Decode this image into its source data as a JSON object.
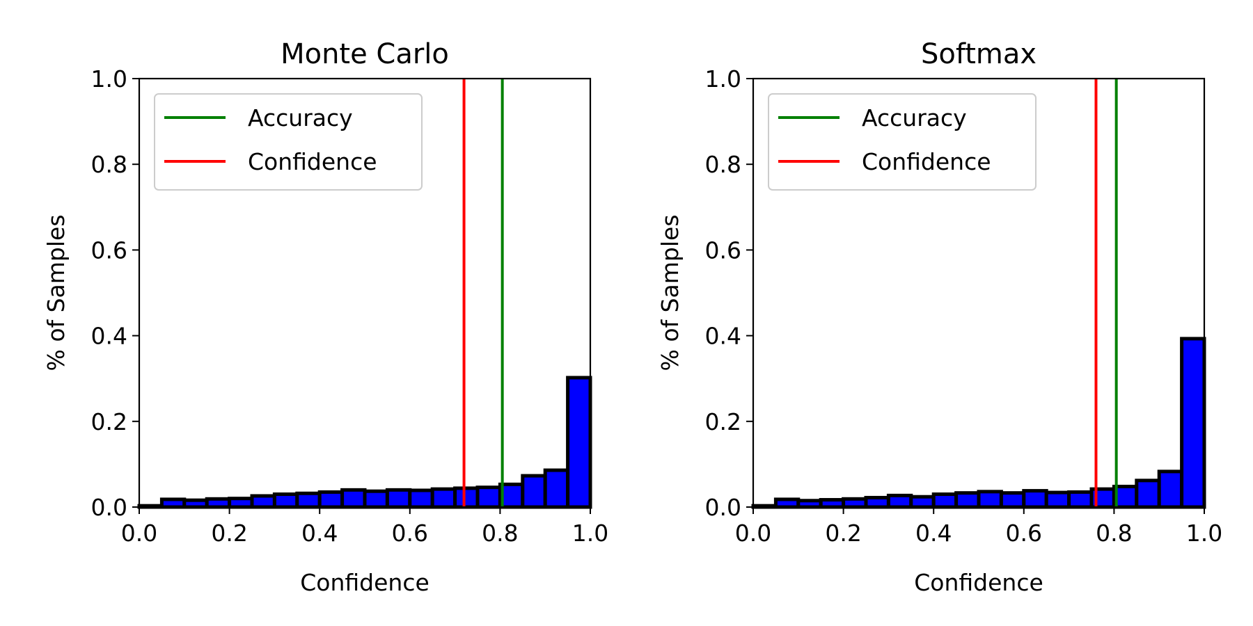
{
  "colors": {
    "bar_fill": "#0000ff",
    "bar_edge": "#000000",
    "accuracy": "#008000",
    "confidence": "#ff0000"
  },
  "chart_data": [
    {
      "type": "bar",
      "title": "Monte Carlo",
      "xlabel": "Confidence",
      "ylabel": "% of Samples",
      "xlim": [
        0.0,
        1.0
      ],
      "ylim": [
        0.0,
        1.0
      ],
      "xticks": [
        "0.0",
        "0.2",
        "0.4",
        "0.6",
        "0.8",
        "1.0"
      ],
      "yticks": [
        "0.0",
        "0.2",
        "0.4",
        "0.6",
        "0.8",
        "1.0"
      ],
      "grid": false,
      "legend_position": "top-left",
      "bin_width": 0.05,
      "bin_starts": [
        0.0,
        0.05,
        0.1,
        0.15,
        0.2,
        0.25,
        0.3,
        0.35,
        0.4,
        0.45,
        0.5,
        0.55,
        0.6,
        0.65,
        0.7,
        0.75,
        0.8,
        0.85,
        0.9,
        0.95
      ],
      "values": [
        0.003,
        0.018,
        0.016,
        0.019,
        0.02,
        0.026,
        0.03,
        0.032,
        0.035,
        0.04,
        0.037,
        0.04,
        0.039,
        0.042,
        0.044,
        0.046,
        0.053,
        0.073,
        0.086,
        0.302
      ],
      "lines": [
        {
          "name": "Accuracy",
          "x": 0.805,
          "color": "#008000"
        },
        {
          "name": "Confidence",
          "x": 0.72,
          "color": "#ff0000"
        }
      ]
    },
    {
      "type": "bar",
      "title": "Softmax",
      "xlabel": "Confidence",
      "ylabel": "% of Samples",
      "xlim": [
        0.0,
        1.0
      ],
      "ylim": [
        0.0,
        1.0
      ],
      "xticks": [
        "0.0",
        "0.2",
        "0.4",
        "0.6",
        "0.8",
        "1.0"
      ],
      "yticks": [
        "0.0",
        "0.2",
        "0.4",
        "0.6",
        "0.8",
        "1.0"
      ],
      "grid": false,
      "legend_position": "top-left",
      "bin_width": 0.05,
      "bin_starts": [
        0.0,
        0.05,
        0.1,
        0.15,
        0.2,
        0.25,
        0.3,
        0.35,
        0.4,
        0.45,
        0.5,
        0.55,
        0.6,
        0.65,
        0.7,
        0.75,
        0.8,
        0.85,
        0.9,
        0.95
      ],
      "values": [
        0.003,
        0.018,
        0.015,
        0.017,
        0.019,
        0.022,
        0.027,
        0.024,
        0.03,
        0.033,
        0.036,
        0.033,
        0.038,
        0.034,
        0.035,
        0.042,
        0.048,
        0.062,
        0.083,
        0.393
      ],
      "lines": [
        {
          "name": "Accuracy",
          "x": 0.805,
          "color": "#008000"
        },
        {
          "name": "Confidence",
          "x": 0.76,
          "color": "#ff0000"
        }
      ]
    }
  ]
}
